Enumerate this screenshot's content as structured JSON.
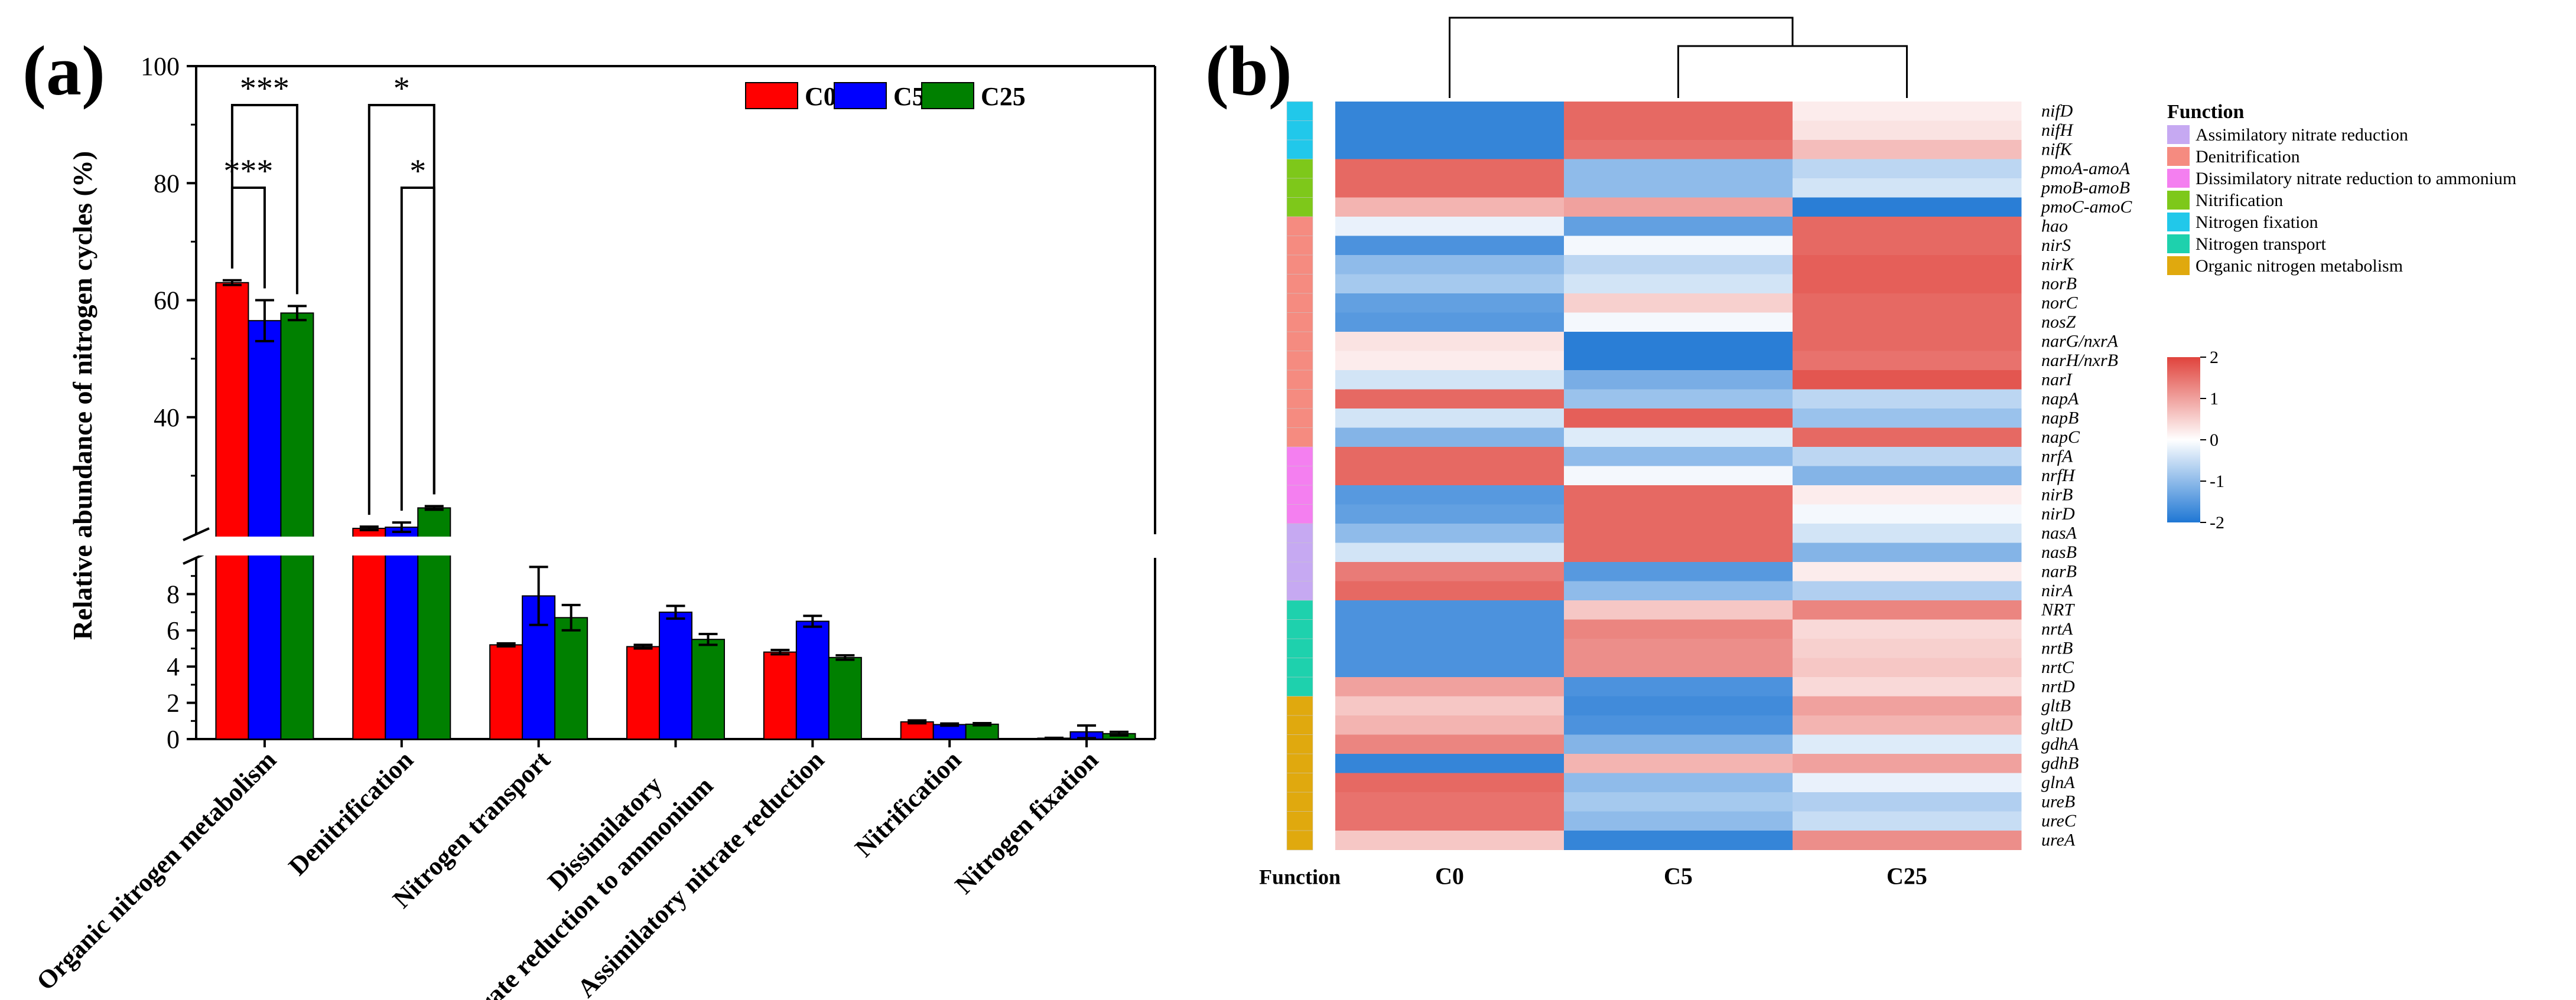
{
  "panel_labels": {
    "a": "(a)",
    "b": "(b)"
  },
  "colors": {
    "C0": "#ff0000",
    "C5": "#0000ff",
    "C25": "#008000"
  },
  "chart_data": [
    {
      "type": "bar",
      "title": "",
      "xlabel": "",
      "ylabel": "Relative abundance of nitrogen cycles (%)",
      "axis_break": {
        "lower_range": [
          0,
          10
        ],
        "upper_range": [
          20,
          100
        ]
      },
      "yticks_lower": [
        "0",
        "2",
        "4",
        "6",
        "8"
      ],
      "yticks_upper": [
        "40",
        "60",
        "80",
        "100"
      ],
      "categories": [
        "Organic nitrogen metabolism",
        "Denitrification",
        "Nitrogen transport",
        "Dissimilatory nitrate reduction to ammonium",
        "Assimilatory nitrate reduction",
        "Nitrification",
        "Nitrogen fixation"
      ],
      "category_labels": [
        [
          "Organic nitrogen metabolism"
        ],
        [
          "Denitrification"
        ],
        [
          "Nitrogen transport"
        ],
        [
          "Dissimilatory",
          "nitrate reduction to ammonium"
        ],
        [
          "Assimilatory nitrate reduction"
        ],
        [
          "Nitrification"
        ],
        [
          "Nitrogen fixation"
        ]
      ],
      "series": [
        {
          "name": "C0",
          "values": [
            63.0,
            21.0,
            5.2,
            5.1,
            4.8,
            0.95,
            0.05
          ],
          "errors": [
            0.4,
            0.3,
            0.08,
            0.1,
            0.12,
            0.08,
            0.02
          ]
        },
        {
          "name": "C5",
          "values": [
            56.5,
            21.2,
            7.9,
            7.0,
            6.5,
            0.8,
            0.4
          ],
          "errors": [
            3.5,
            0.8,
            1.6,
            0.35,
            0.3,
            0.06,
            0.35
          ]
        },
        {
          "name": "C25",
          "values": [
            57.8,
            24.5,
            6.7,
            5.5,
            4.5,
            0.82,
            0.3
          ],
          "errors": [
            1.2,
            0.3,
            0.7,
            0.3,
            0.12,
            0.06,
            0.1
          ]
        }
      ],
      "significance": [
        {
          "category": 0,
          "pair": [
            "C0",
            "C25"
          ],
          "label": "***"
        },
        {
          "category": 0,
          "pair": [
            "C0",
            "C5"
          ],
          "label": "***"
        },
        {
          "category": 1,
          "pair": [
            "C0",
            "C25"
          ],
          "label": "*"
        },
        {
          "category": 1,
          "pair": [
            "C5",
            "C25"
          ],
          "label": "*"
        }
      ],
      "legend": {
        "position": "top-right",
        "entries": [
          "C0",
          "C5",
          "C25"
        ]
      }
    },
    {
      "type": "heatmap",
      "title": "",
      "columns": [
        "C0",
        "C5",
        "C25"
      ],
      "column_axis_label": "Function",
      "rows": [
        "nifD",
        "nifH",
        "nifK",
        "pmoA-amoA",
        "pmoB-amoB",
        "pmoC-amoC",
        "hao",
        "nirS",
        "nirK",
        "norB",
        "norC",
        "nosZ",
        "narG/nxrA",
        "narH/nxrB",
        "narI",
        "napA",
        "napB",
        "napC",
        "nrfA",
        "nrfH",
        "nirB",
        "nirD",
        "nasA",
        "nasB",
        "narB",
        "nirA",
        "NRT",
        "nrtA",
        "nrtB",
        "nrtC",
        "nrtD",
        "gltB",
        "gltD",
        "gdhA",
        "gdhB",
        "glnA",
        "ureB",
        "ureC",
        "ureA"
      ],
      "row_functions": [
        "Nitrogen fixation",
        "Nitrogen fixation",
        "Nitrogen fixation",
        "Nitrification",
        "Nitrification",
        "Nitrification",
        "Denitrification",
        "Denitrification",
        "Denitrification",
        "Denitrification",
        "Denitrification",
        "Denitrification",
        "Denitrification",
        "Denitrification",
        "Denitrification",
        "Denitrification",
        "Denitrification",
        "Denitrification",
        "Dissimilatory nitrate reduction to ammonium",
        "Dissimilatory nitrate reduction to ammonium",
        "Dissimilatory nitrate reduction to ammonium",
        "Dissimilatory nitrate reduction to ammonium",
        "Assimilatory nitrate reduction",
        "Assimilatory nitrate reduction",
        "Assimilatory nitrate reduction",
        "Assimilatory nitrate reduction",
        "Nitrogen transport",
        "Nitrogen transport",
        "Nitrogen transport",
        "Nitrogen transport",
        "Nitrogen transport",
        "Organic nitrogen metabolism",
        "Organic nitrogen metabolism",
        "Organic nitrogen metabolism",
        "Organic nitrogen metabolism",
        "Organic nitrogen metabolism",
        "Organic nitrogen metabolism",
        "Organic nitrogen metabolism",
        "Organic nitrogen metabolism"
      ],
      "values": [
        [
          -1.8,
          1.6,
          0.2
        ],
        [
          -1.8,
          1.6,
          0.3
        ],
        [
          -1.8,
          1.5,
          0.7
        ],
        [
          1.6,
          -1.0,
          -0.6
        ],
        [
          1.6,
          -1.0,
          -0.4
        ],
        [
          0.8,
          1.0,
          -1.9
        ],
        [
          -0.2,
          -1.4,
          1.6
        ],
        [
          -1.6,
          -0.1,
          1.6
        ],
        [
          -1.0,
          -0.6,
          1.7
        ],
        [
          -0.8,
          -0.4,
          1.7
        ],
        [
          -1.4,
          0.5,
          1.6
        ],
        [
          -1.5,
          -0.1,
          1.6
        ],
        [
          0.3,
          -1.9,
          1.6
        ],
        [
          0.2,
          -1.9,
          1.5
        ],
        [
          -0.4,
          -1.2,
          1.8
        ],
        [
          1.6,
          -0.9,
          -0.6
        ],
        [
          -0.4,
          1.7,
          -0.9
        ],
        [
          -1.1,
          -0.3,
          1.6
        ],
        [
          1.6,
          -1.0,
          -0.6
        ],
        [
          1.6,
          -0.1,
          -1.1
        ],
        [
          -1.5,
          1.6,
          0.2
        ],
        [
          -1.4,
          1.6,
          -0.1
        ],
        [
          -1.0,
          1.6,
          -0.4
        ],
        [
          -0.4,
          1.6,
          -1.1
        ],
        [
          1.4,
          -1.5,
          0.2
        ],
        [
          1.6,
          -1.0,
          -0.7
        ],
        [
          -1.6,
          0.6,
          1.3
        ],
        [
          -1.6,
          1.3,
          0.4
        ],
        [
          -1.6,
          1.2,
          0.5
        ],
        [
          -1.6,
          1.2,
          0.6
        ],
        [
          1.0,
          -1.6,
          0.4
        ],
        [
          0.6,
          -1.7,
          1.0
        ],
        [
          0.8,
          -1.6,
          0.8
        ],
        [
          1.3,
          -1.1,
          -0.3
        ],
        [
          -1.8,
          0.8,
          1.0
        ],
        [
          1.6,
          -1.0,
          -0.2
        ],
        [
          1.5,
          -0.8,
          -0.7
        ],
        [
          1.5,
          -1.0,
          -0.5
        ],
        [
          0.6,
          -1.8,
          1.2
        ]
      ],
      "color_scale": {
        "min": -2,
        "max": 2,
        "low": "#1f77d4",
        "mid": "#ffffff",
        "high": "#e0433c",
        "ticks": [
          "2",
          "1",
          "0",
          "-1",
          "-2"
        ]
      },
      "legend": {
        "title": "Function",
        "entries": [
          {
            "name": "Assimilatory nitrate reduction",
            "color": "#c6a9f2"
          },
          {
            "name": "Denitrification",
            "color": "#f58b80"
          },
          {
            "name": "Dissimilatory nitrate reduction to ammonium",
            "color": "#f47ff0"
          },
          {
            "name": "Nitrification",
            "color": "#7ec81a"
          },
          {
            "name": "Nitrogen fixation",
            "color": "#21c8ea"
          },
          {
            "name": "Nitrogen transport",
            "color": "#1ed1ad"
          },
          {
            "name": "Organic nitrogen metabolism",
            "color": "#e0a90e"
          }
        ]
      }
    }
  ]
}
